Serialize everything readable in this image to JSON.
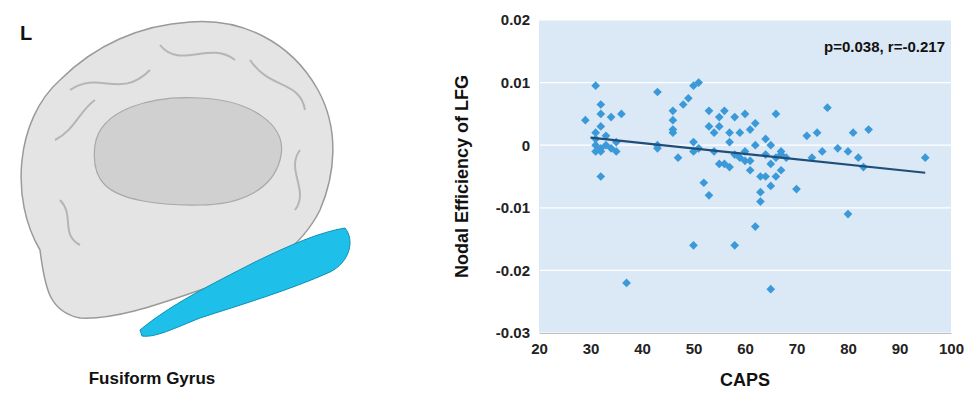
{
  "panel": {
    "label": "L",
    "caption": "Fusiform Gyrus"
  },
  "chart_data": {
    "type": "scatter",
    "x_label": "CAPS",
    "y_label": "Nodal Efficiency of LFG",
    "annotation": "p=0.038, r=-0.217",
    "color": "#3a9ad9",
    "marker": "diamond",
    "grid": true,
    "xlim": [
      20,
      100
    ],
    "xticks": [
      20,
      30,
      40,
      50,
      60,
      70,
      80,
      90,
      100
    ],
    "ylim": [
      -0.03,
      0.02
    ],
    "yticks": [
      -0.03,
      -0.02,
      -0.01,
      0,
      0.01,
      0.02
    ],
    "x": [
      29,
      31,
      31,
      31,
      31,
      31,
      32,
      32,
      32,
      32,
      32,
      32,
      33,
      33,
      34,
      34,
      35,
      35,
      36,
      37,
      43,
      43,
      43,
      46,
      46,
      46,
      46,
      47,
      48,
      49,
      50,
      50,
      50,
      50,
      51,
      51,
      52,
      53,
      53,
      53,
      54,
      54,
      55,
      55,
      55,
      56,
      56,
      57,
      57,
      57,
      58,
      58,
      58,
      59,
      59,
      60,
      60,
      60,
      61,
      61,
      61,
      62,
      62,
      62,
      63,
      63,
      63,
      64,
      64,
      64,
      65,
      65,
      65,
      65,
      66,
      66,
      66,
      67,
      67,
      67,
      68,
      70,
      72,
      73,
      74,
      75,
      76,
      78,
      80,
      80,
      81,
      82,
      83,
      84,
      95
    ],
    "values": [
      0.004,
      0.0095,
      0.002,
      0.001,
      0,
      -0.001,
      0.0065,
      0.005,
      0.003,
      -0.0005,
      -0.001,
      -0.005,
      0.0015,
      0,
      0.0045,
      -0.0005,
      -0.001,
      0.0005,
      0.005,
      -0.022,
      0.0085,
      0,
      -0.0005,
      0.0055,
      0.004,
      0.0025,
      0.002,
      -0.002,
      0.0065,
      0.0075,
      0.0095,
      0.0005,
      -0.001,
      -0.016,
      0.01,
      -0.0005,
      -0.006,
      0.0055,
      0.003,
      -0.008,
      0.002,
      -0.001,
      0.0045,
      0.003,
      -0.003,
      0.0055,
      -0.003,
      0.002,
      0.0005,
      -0.0035,
      0.0045,
      -0.0015,
      -0.016,
      0.002,
      -0.002,
      0.005,
      -0.001,
      -0.0025,
      0.0025,
      -0.0025,
      -0.004,
      0.0035,
      0,
      -0.013,
      -0.005,
      -0.0075,
      -0.009,
      0.001,
      -0.0015,
      -0.005,
      0,
      -0.003,
      -0.0065,
      -0.023,
      0.005,
      -0.002,
      -0.005,
      -0.001,
      -0.0015,
      -0.004,
      -0.002,
      -0.007,
      0.0015,
      -0.002,
      0.002,
      -0.001,
      0.006,
      -0.0005,
      -0.001,
      -0.011,
      0.002,
      -0.002,
      -0.0035,
      0.0025,
      -0.002
    ],
    "trend": {
      "type": "line",
      "color": "#1f4e79",
      "x": [
        30,
        95
      ],
      "values": [
        0.0012,
        -0.0044
      ]
    }
  }
}
